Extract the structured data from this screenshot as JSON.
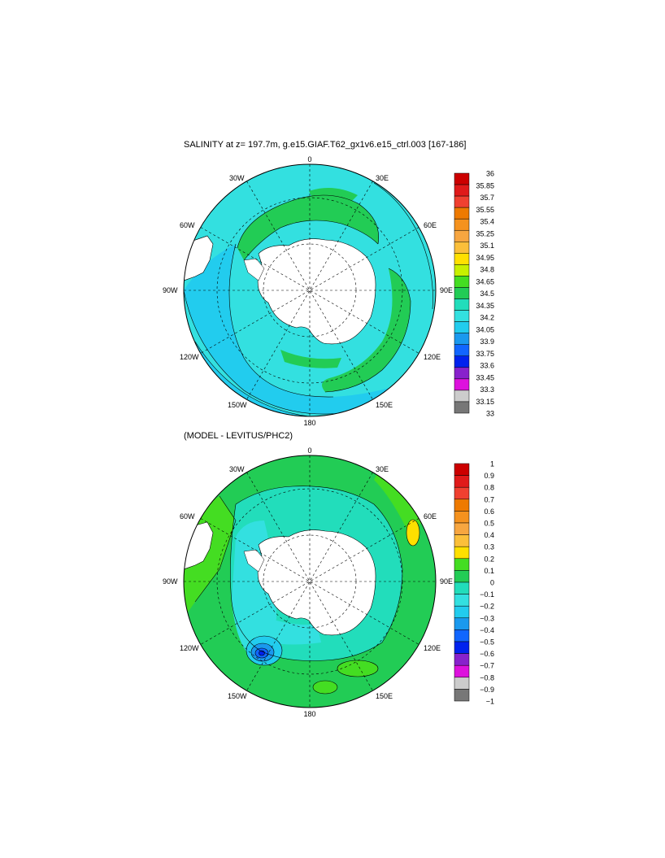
{
  "maps": [
    {
      "title": "SALINITY at z= 197.7m, g.e15.GIAF.T62_gx1v6.e15_ctrl.003 [167-186]",
      "lon_labels": [
        "0",
        "30E",
        "60E",
        "90E",
        "120E",
        "150E",
        "180",
        "150W",
        "120W",
        "90W",
        "60W",
        "30W"
      ],
      "colorbar": {
        "labels": [
          "36",
          "35.85",
          "35.7",
          "35.55",
          "35.4",
          "35.25",
          "35.1",
          "34.95",
          "34.8",
          "34.65",
          "34.5",
          "34.35",
          "34.2",
          "34.05",
          "33.9",
          "33.75",
          "33.6",
          "33.45",
          "33.3",
          "33.15",
          "33"
        ],
        "colors": [
          "#cc0000",
          "#e01a1a",
          "#f04030",
          "#ee7a00",
          "#f5921e",
          "#f7a640",
          "#fbbf3a",
          "#ffe000",
          "#c8f000",
          "#44dd22",
          "#22cc55",
          "#22ddbb",
          "#33e0e0",
          "#22ccee",
          "#1a99ee",
          "#1166ff",
          "#0022ee",
          "#8822cc",
          "#dd11dd",
          "#cccccc",
          "#777777"
        ]
      }
    },
    {
      "title": "(MODEL - LEVITUS/PHC2)",
      "lon_labels": [
        "0",
        "30E",
        "60E",
        "90E",
        "120E",
        "150E",
        "180",
        "150W",
        "120W",
        "90W",
        "60W",
        "30W"
      ],
      "colorbar": {
        "labels": [
          "1",
          "0.9",
          "0.8",
          "0.7",
          "0.6",
          "0.5",
          "0.4",
          "0.3",
          "0.2",
          "0.1",
          "0",
          "−0.1",
          "−0.2",
          "−0.3",
          "−0.4",
          "−0.5",
          "−0.6",
          "−0.7",
          "−0.8",
          "−0.9",
          "−1"
        ],
        "colors": [
          "#cc0000",
          "#e01a1a",
          "#f04030",
          "#ee7a00",
          "#f5921e",
          "#f7a640",
          "#fbbf3a",
          "#ffe000",
          "#44dd22",
          "#22cc55",
          "#22ddbb",
          "#33e0e0",
          "#22ccee",
          "#1a99ee",
          "#1166ff",
          "#0022ee",
          "#8822cc",
          "#dd11dd",
          "#cccccc",
          "#777777"
        ]
      }
    }
  ]
}
